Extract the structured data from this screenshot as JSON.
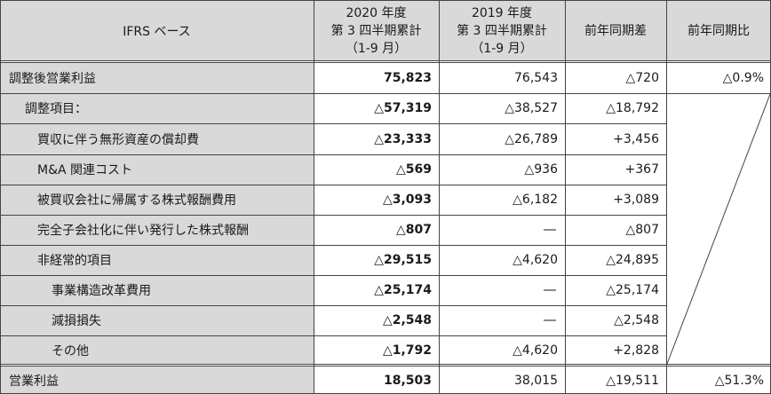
{
  "header": {
    "label": "IFRS ベース",
    "col2020": [
      "2020 年度",
      "第 3 四半期累計",
      "（1-9 月）"
    ],
    "col2019": [
      "2019 年度",
      "第 3 四半期累計",
      "（1-9 月）"
    ],
    "diff": "前年同期差",
    "ratio": "前年同期比"
  },
  "rows": [
    {
      "label": "調整後営業利益",
      "indent": 0,
      "v2020": "75,823",
      "v2019": "76,543",
      "diff": "△720",
      "ratio": "△0.9%"
    },
    {
      "label": "調整項目：",
      "indent": 1,
      "v2020": "△57,319",
      "v2019": "△38,527",
      "diff": "△18,792",
      "ratio": ""
    },
    {
      "label": "買収に伴う無形資産の償却費",
      "indent": 2,
      "v2020": "△23,333",
      "v2019": "△26,789",
      "diff": "+3,456",
      "ratio": ""
    },
    {
      "label": "M&A 関連コスト",
      "indent": 2,
      "v2020": "△569",
      "v2019": "△936",
      "diff": "+367",
      "ratio": ""
    },
    {
      "label": "被買収会社に帰属する株式報酬費用",
      "indent": 2,
      "v2020": "△3,093",
      "v2019": "△6,182",
      "diff": "+3,089",
      "ratio": ""
    },
    {
      "label": "完全子会社化に伴い発行した株式報酬",
      "indent": 2,
      "v2020": "△807",
      "v2019": "―",
      "diff": "△807",
      "ratio": ""
    },
    {
      "label": "非経常的項目",
      "indent": 2,
      "v2020": "△29,515",
      "v2019": "△4,620",
      "diff": "△24,895",
      "ratio": ""
    },
    {
      "label": "事業構造改革費用",
      "indent": 3,
      "v2020": "△25,174",
      "v2019": "―",
      "diff": "△25,174",
      "ratio": ""
    },
    {
      "label": "減損損失",
      "indent": 3,
      "v2020": "△2,548",
      "v2019": "―",
      "diff": "△2,548",
      "ratio": ""
    },
    {
      "label": "その他",
      "indent": 3,
      "v2020": "△1,792",
      "v2019": "△4,620",
      "diff": "+2,828",
      "ratio": ""
    },
    {
      "label": "営業利益",
      "indent": 0,
      "v2020": "18,503",
      "v2019": "38,015",
      "diff": "△19,511",
      "ratio": "△51.3%"
    }
  ]
}
